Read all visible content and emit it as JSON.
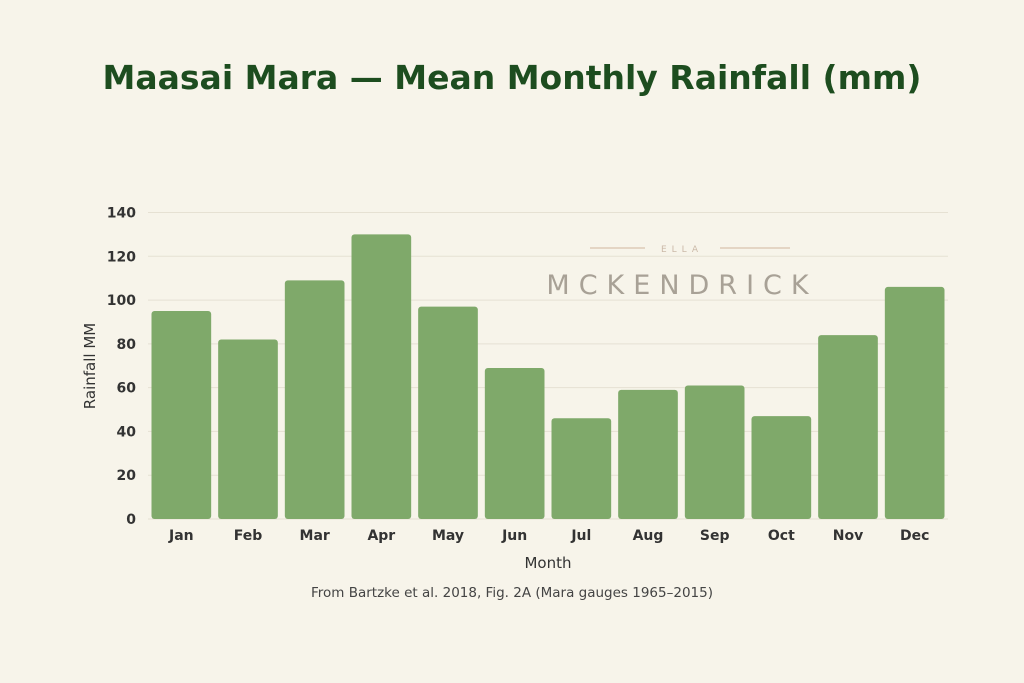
{
  "chart_data": {
    "type": "bar",
    "title": "Maasai Mara — Mean Monthly Rainfall (mm)",
    "xlabel": "Month",
    "ylabel": "Rainfall MM",
    "caption": "From Bartzke et al. 2018, Fig. 2A (Mara gauges 1965–2015)",
    "categories": [
      "Jan",
      "Feb",
      "Mar",
      "Apr",
      "May",
      "Jun",
      "Jul",
      "Aug",
      "Sep",
      "Oct",
      "Nov",
      "Dec"
    ],
    "values": [
      95,
      82,
      109,
      130,
      97,
      69,
      46,
      59,
      61,
      47,
      84,
      106
    ],
    "ylim": [
      0,
      140
    ],
    "yticks": [
      0,
      20,
      40,
      60,
      80,
      100,
      120,
      140
    ],
    "grid": true,
    "bar_color": "#7fa96a",
    "title_color": "#1d4d1f"
  },
  "watermark": {
    "top": "ELLA",
    "main": "MCKENDRICK"
  }
}
